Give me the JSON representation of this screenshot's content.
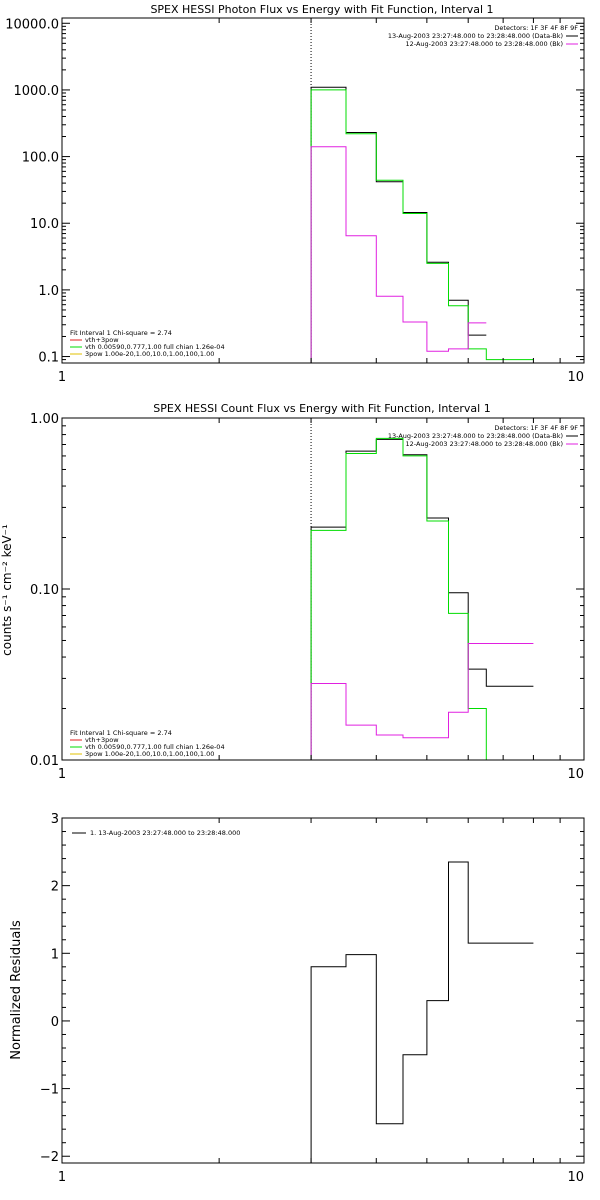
{
  "chart_data": [
    {
      "type": "line",
      "title": "SPEX HESSI Photon Flux vs Energy with Fit Function, Interval 1",
      "xlabel": "",
      "ylabel": "",
      "x_scale": "log",
      "y_scale": "log",
      "xlim": [
        1,
        10
      ],
      "ylim": [
        0.08,
        12000
      ],
      "x_ticks": [
        {
          "v": 1,
          "label": "1"
        },
        {
          "v": 10,
          "label": "10"
        }
      ],
      "y_ticks": [
        {
          "v": 0.1,
          "label": "0.1"
        },
        {
          "v": 1,
          "label": "1.0"
        },
        {
          "v": 10,
          "label": "10.0"
        },
        {
          "v": 100,
          "label": "100.0"
        },
        {
          "v": 1000,
          "label": "1000.0"
        },
        {
          "v": 10000,
          "label": "10000.0"
        }
      ],
      "vline_x": 3.0,
      "edges": [
        3.0,
        3.5,
        4.0,
        4.5,
        5.0,
        5.5,
        6.0,
        6.5,
        7.0,
        7.5,
        8.0
      ],
      "series": [
        {
          "color": "#000000",
          "values": [
            1100,
            230,
            42,
            14.5,
            2.6,
            0.7,
            0.21
          ]
        },
        {
          "color": "#00dd00",
          "values": [
            1000,
            220,
            44,
            14.0,
            2.5,
            0.58,
            0.13,
            0.09,
            0.09,
            0.09
          ]
        },
        {
          "color": "#e020e0",
          "values": [
            140,
            6.5,
            0.8,
            0.33,
            0.12,
            0.13,
            0.32
          ]
        }
      ],
      "legend_top": {
        "header": "Detectors: 1F 3F 4F 8F 9F",
        "entries": [
          {
            "text": "13-Aug-2003 23:27:48.000 to 23:28:48.000 (Data-Bk)",
            "color": "#000000"
          },
          {
            "text": "12-Aug-2003 23:27:48.000 to 23:28:48.000 (Bk)",
            "color": "#e020e0"
          }
        ]
      },
      "legend_bottom": {
        "header": "Fit Interval 1    Chi-square = 2.74",
        "entries": [
          {
            "text": "vth+3pow",
            "color": "#e02020"
          },
          {
            "text": "vth 0.00590,0.777,1.00  full chian 1.26e-04",
            "color": "#00dd00"
          },
          {
            "text": "3pow 1.00e-20,1.00,10.0,1.00,100,1.00",
            "color": "#e0c000"
          }
        ]
      }
    },
    {
      "type": "line",
      "title": "SPEX HESSI Count Flux vs Energy with Fit Function, Interval 1",
      "xlabel": "",
      "ylabel": "counts s⁻¹ cm⁻² keV⁻¹",
      "x_scale": "log",
      "y_scale": "log",
      "xlim": [
        1,
        10
      ],
      "ylim": [
        0.01,
        1.0
      ],
      "x_ticks": [
        {
          "v": 1,
          "label": "1"
        },
        {
          "v": 10,
          "label": "10"
        }
      ],
      "y_ticks": [
        {
          "v": 0.01,
          "label": "0.01"
        },
        {
          "v": 0.1,
          "label": "0.10"
        },
        {
          "v": 1,
          "label": "1.00"
        }
      ],
      "vline_x": 3.0,
      "edges": [
        3.0,
        3.5,
        4.0,
        4.5,
        5.0,
        5.5,
        6.0,
        6.5,
        7.0,
        7.5,
        8.0
      ],
      "series": [
        {
          "color": "#000000",
          "values": [
            0.23,
            0.64,
            0.75,
            0.61,
            0.26,
            0.095,
            0.034,
            0.027,
            0.027,
            0.027
          ]
        },
        {
          "color": "#00dd00",
          "values": [
            0.22,
            0.62,
            0.76,
            0.6,
            0.25,
            0.072,
            0.02,
            0.01,
            0.01,
            0.01
          ]
        },
        {
          "color": "#e020e0",
          "values": [
            0.028,
            0.016,
            0.014,
            0.0135,
            0.0135,
            0.019,
            0.048,
            0.048,
            0.048,
            0.048
          ]
        }
      ],
      "legend_top": {
        "header": "Detectors: 1F 3F 4F 8F 9F",
        "entries": [
          {
            "text": "13-Aug-2003 23:27:48.000 to 23:28:48.000 (Data-Bk)",
            "color": "#000000"
          },
          {
            "text": "12-Aug-2003 23:27:48.000 to 23:28:48.000 (Bk)",
            "color": "#e020e0"
          }
        ]
      },
      "legend_bottom": {
        "header": "Fit Interval 1    Chi-square = 2.74",
        "entries": [
          {
            "text": "vth+3pow",
            "color": "#e02020"
          },
          {
            "text": "vth 0.00590,0.777,1.00  full chian 1.26e-04",
            "color": "#00dd00"
          },
          {
            "text": "3pow 1.00e-20,1.00,10.0,1.00,100,1.00",
            "color": "#e0c000"
          }
        ]
      }
    },
    {
      "type": "line",
      "title": "",
      "xlabel": "",
      "ylabel": "Normalized Residuals",
      "x_scale": "log",
      "y_scale": "linear",
      "xlim": [
        1,
        10
      ],
      "ylim": [
        -2.1,
        3.0
      ],
      "x_ticks": [
        {
          "v": 1,
          "label": "1"
        },
        {
          "v": 10,
          "label": "10"
        }
      ],
      "y_ticks": [
        {
          "v": -2,
          "label": "−2"
        },
        {
          "v": -1,
          "label": "−1"
        },
        {
          "v": 0,
          "label": "0"
        },
        {
          "v": 1,
          "label": "1"
        },
        {
          "v": 2,
          "label": "2"
        },
        {
          "v": 3,
          "label": "3"
        }
      ],
      "edges": [
        3.0,
        3.5,
        4.0,
        4.5,
        5.0,
        5.5,
        6.0,
        6.5,
        7.0,
        7.5,
        8.0
      ],
      "series": [
        {
          "color": "#000000",
          "values": [
            0.8,
            0.98,
            -1.52,
            -0.5,
            0.3,
            2.35,
            1.15,
            1.15,
            1.15,
            1.15
          ]
        }
      ],
      "legend_top": {
        "header": "",
        "entries": [
          {
            "text": "1. 13-Aug-2003 23:27:48.000 to 23:28:48.000",
            "color": "#000000"
          }
        ]
      }
    }
  ]
}
